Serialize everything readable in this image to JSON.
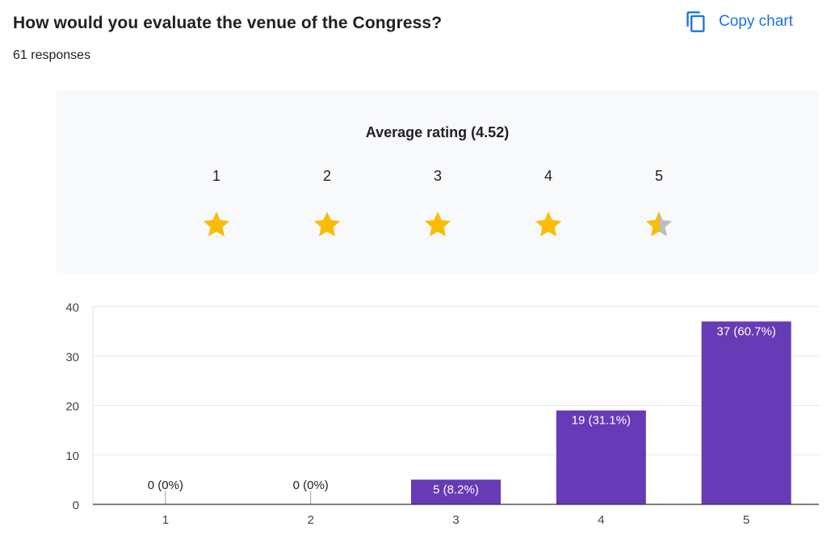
{
  "question": {
    "title": "How would you evaluate the venue of the Congress?",
    "responses": "61 responses"
  },
  "copy_chart": {
    "label": "Copy chart",
    "icon": "copy-icon"
  },
  "rating": {
    "title": "Average rating (4.52)",
    "average": 4.52,
    "scale": [
      "1",
      "2",
      "3",
      "4",
      "5"
    ],
    "star_fill": [
      1,
      1,
      1,
      1,
      0.52
    ],
    "star_color": "#fbbc04",
    "star_empty_color": "#bdbdbd"
  },
  "chart_data": {
    "type": "bar",
    "categories": [
      "1",
      "2",
      "3",
      "4",
      "5"
    ],
    "values": [
      0,
      0,
      5,
      19,
      37
    ],
    "labels": [
      "0 (0%)",
      "0 (0%)",
      "5 (8.2%)",
      "19 (31.1%)",
      "37 (60.7%)"
    ],
    "title": "",
    "xlabel": "",
    "ylabel": "",
    "ylim": [
      0,
      40
    ],
    "yticks": [
      0,
      10,
      20,
      30,
      40
    ],
    "grid": true,
    "bar_color": "#673ab7"
  }
}
